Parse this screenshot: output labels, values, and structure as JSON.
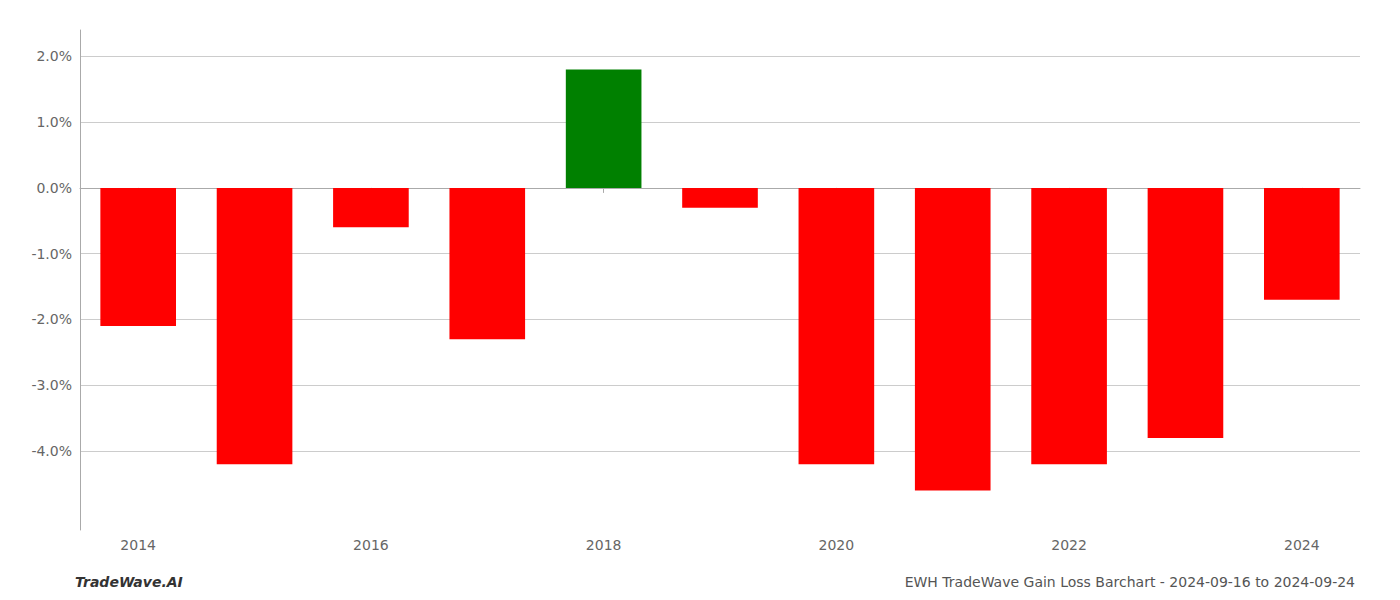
{
  "chart_data": {
    "type": "bar",
    "title": "EWH TradeWave Gain Loss Barchart - 2024-09-16 to 2024-09-24",
    "annotations": [
      "TradeWave.AI"
    ],
    "categories": [
      "2014",
      null,
      "2016",
      null,
      "2018",
      null,
      "2020",
      null,
      "2022",
      null,
      "2024"
    ],
    "values": [
      -0.021,
      -0.042,
      -0.006,
      -0.023,
      0.018,
      -0.003,
      -0.042,
      -0.046,
      -0.042,
      -0.038,
      -0.017
    ],
    "colors": [
      "#ff0000",
      "#ff0000",
      "#ff0000",
      "#ff0000",
      "#008000",
      "#ff0000",
      "#ff0000",
      "#ff0000",
      "#ff0000",
      "#ff0000",
      "#ff0000"
    ],
    "ylim": [
      -0.052,
      0.024
    ],
    "yticks": [
      {
        "value": -0.04,
        "label": "-4.0%"
      },
      {
        "value": -0.03,
        "label": "-3.0%"
      },
      {
        "value": -0.02,
        "label": "-2.0%"
      },
      {
        "value": -0.01,
        "label": "-1.0%"
      },
      {
        "value": 0.0,
        "label": "0.0%"
      },
      {
        "value": 0.01,
        "label": "1.0%"
      },
      {
        "value": 0.02,
        "label": "2.0%"
      }
    ],
    "grid": true
  }
}
